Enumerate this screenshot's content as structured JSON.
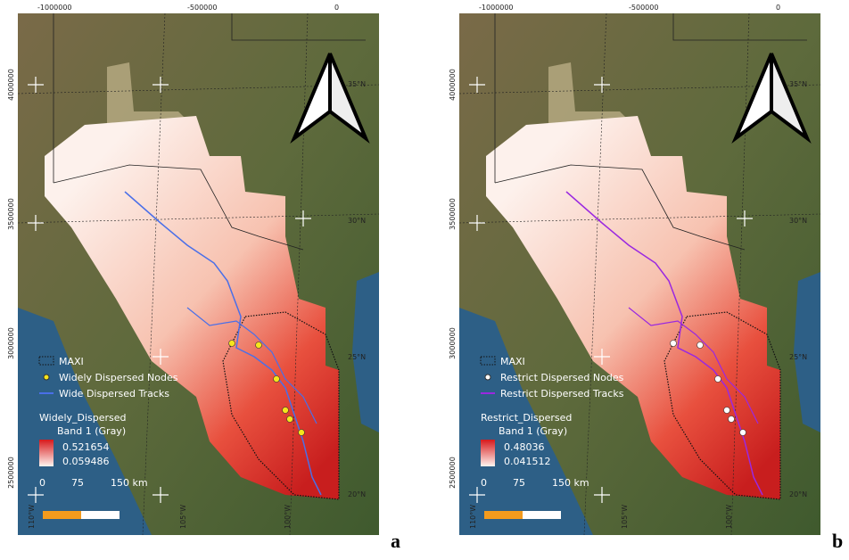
{
  "panels": [
    {
      "label": "a",
      "top_coords": [
        "-1000000",
        "-500000",
        "0"
      ],
      "left_coords": [
        "4000000",
        "3500000",
        "3000000",
        "2500000"
      ],
      "lat_labels": [
        "35°N",
        "30°N",
        "25°N",
        "20°N"
      ],
      "lon_labels": [
        "110°W",
        "105°W",
        "100°W"
      ],
      "legend": {
        "maxi": "MAXI",
        "nodes": "Widely Dispersed Nodes",
        "tracks": "Wide Dispersed Tracks",
        "raster_title": "Widely_Dispersed",
        "band": "Band 1 (Gray)",
        "max": "0.521654",
        "min": "0.059486"
      },
      "scale": [
        "0",
        "75",
        "150 km"
      ]
    },
    {
      "label": "b",
      "top_coords": [
        "-1000000",
        "-500000",
        "0"
      ],
      "left_coords": [
        "4000000",
        "3500000",
        "3000000",
        "2500000"
      ],
      "lat_labels": [
        "35°N",
        "30°N",
        "25°N",
        "20°N"
      ],
      "lon_labels": [
        "110°W",
        "105°W",
        "100°W"
      ],
      "legend": {
        "maxi": "MAXI",
        "nodes": "Restrict Dispersed Nodes",
        "tracks": "Restrict Dispersed Tracks",
        "raster_title": "Restrict_Dispersed",
        "band": "Band 1 (Gray)",
        "max": "0.48036",
        "min": "0.041512"
      },
      "scale": [
        "0",
        "75",
        "150 km"
      ]
    }
  ]
}
